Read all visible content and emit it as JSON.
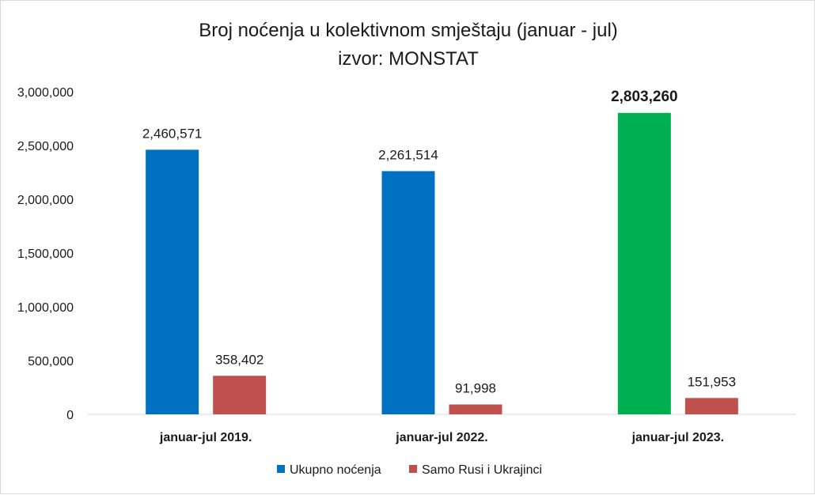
{
  "chart_data": {
    "type": "bar",
    "title": "Broj noćenja u kolektivnom smještaju (januar - jul)",
    "subtitle": "izvor: MONSTAT",
    "categories": [
      "januar-jul 2019.",
      "januar-jul 2022.",
      "januar-jul 2023."
    ],
    "series": [
      {
        "name": "Ukupno noćenja",
        "color": "#0070C0",
        "values": [
          2460571,
          2261514,
          2803260
        ],
        "labels": [
          "2,460,571",
          "2,261,514",
          "2,803,260"
        ],
        "point_colors": [
          "#0070C0",
          "#0070C0",
          "#00B050"
        ],
        "bold_labels": [
          false,
          false,
          true
        ]
      },
      {
        "name": "Samo Rusi i Ukrajinci",
        "color": "#C0504D",
        "values": [
          358402,
          91998,
          151953
        ],
        "labels": [
          "358,402",
          "91,998",
          "151,953"
        ],
        "point_colors": [
          "#C0504D",
          "#C0504D",
          "#C0504D"
        ],
        "bold_labels": [
          false,
          false,
          false
        ]
      }
    ],
    "ylim": [
      0,
      3000000
    ],
    "yticks": [
      0,
      500000,
      1000000,
      1500000,
      2000000,
      2500000,
      3000000
    ],
    "ytick_labels": [
      "0",
      "500,000",
      "1,000,000",
      "1,500,000",
      "2,000,000",
      "2,500,000",
      "3,000,000"
    ],
    "xlabel": "",
    "ylabel": "",
    "grid": false,
    "legend_position": "bottom"
  }
}
